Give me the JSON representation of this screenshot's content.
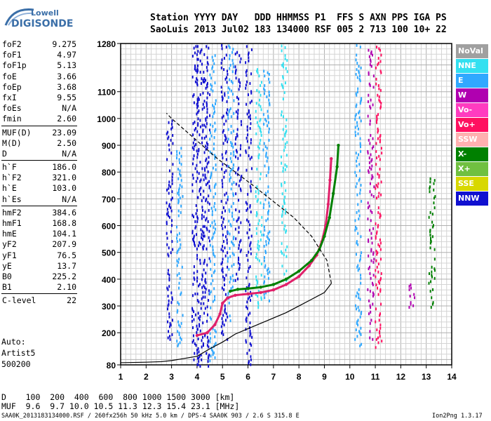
{
  "logo": {
    "line1": "Lowell",
    "line2": "DIGISONDE"
  },
  "header": {
    "line1": "Station YYYY DAY   DDD HHMMSS P1  FFS S AXN PPS IGA PS",
    "line2": "SaoLuis 2013 Jul02 183 134000 RSF 005 2 713 100 10+ 22"
  },
  "params": [
    {
      "name": "foF2",
      "value": "9.275"
    },
    {
      "name": "foF1",
      "value": "4.97"
    },
    {
      "name": "foF1p",
      "value": "5.13"
    },
    {
      "name": "foE",
      "value": "3.66"
    },
    {
      "name": "foEp",
      "value": "3.68"
    },
    {
      "name": "fxI",
      "value": "9.55"
    },
    {
      "name": "foEs",
      "value": "N/A"
    },
    {
      "name": "fmin",
      "value": "2.60"
    },
    {
      "name": "MUF(D)",
      "value": "23.09"
    },
    {
      "name": "M(D)",
      "value": "2.50"
    },
    {
      "name": "D",
      "value": "N/A"
    },
    {
      "name": "h`F",
      "value": "186.0"
    },
    {
      "name": "h`F2",
      "value": "321.0"
    },
    {
      "name": "h`E",
      "value": "103.0"
    },
    {
      "name": "h`Es",
      "value": "N/A"
    },
    {
      "name": "hmF2",
      "value": "384.6"
    },
    {
      "name": "hmF1",
      "value": "168.8"
    },
    {
      "name": "hmE",
      "value": "104.1"
    },
    {
      "name": "yF2",
      "value": "207.9"
    },
    {
      "name": "yF1",
      "value": "76.5"
    },
    {
      "name": "yE",
      "value": "13.7"
    },
    {
      "name": "B0",
      "value": "225.2"
    },
    {
      "name": "B1",
      "value": "2.10"
    },
    {
      "name": "C-level",
      "value": "22"
    }
  ],
  "auto": {
    "line1": "Auto:",
    "line2": "Artist5",
    "line3": "500200"
  },
  "bottom": {
    "d_row": "D    100  200  400  600  800 1000 1500 3000 [km]",
    "muf_row": "MUF  9.6  9.7 10.0 10.5 11.3 12.3 15.4 23.1 [MHz]",
    "footer": "SAA0K_2013183134000.RSF / 260fx256h 50 kHz 5.0 km / DPS-4 SAA0K 903 / 2.6 S 315.8 E",
    "version": "Ion2Png 1.3.17"
  },
  "legend": [
    {
      "label": "NoVal",
      "color": "#a0a0a0"
    },
    {
      "label": "NNE",
      "color": "#33e0f0"
    },
    {
      "label": "E",
      "color": "#30a8ff"
    },
    {
      "label": "W",
      "color": "#b000b0"
    },
    {
      "label": "Vo-",
      "color": "#ff3cc0"
    },
    {
      "label": "Vo+",
      "color": "#ff1060"
    },
    {
      "label": "SSW",
      "color": "#ffb0b0"
    },
    {
      "label": "X-",
      "color": "#008000"
    },
    {
      "label": "X+",
      "color": "#70c040"
    },
    {
      "label": "SSE",
      "color": "#d8d800"
    },
    {
      "label": "NNW",
      "color": "#1010d0"
    }
  ],
  "chart_data": {
    "type": "scatter",
    "xlabel": "",
    "ylabel": "",
    "xlim": [
      1,
      14
    ],
    "ylim": [
      80,
      1280
    ],
    "x_ticks": [
      1,
      2,
      3,
      4,
      5,
      6,
      7,
      8,
      9,
      10,
      11,
      12,
      13,
      14
    ],
    "y_ticks": [
      80,
      200,
      300,
      400,
      500,
      600,
      700,
      800,
      900,
      1000,
      1100,
      1280
    ],
    "grid": true,
    "series": [
      {
        "name": "O-trace",
        "color": "#e0206a",
        "x": [
          4.0,
          4.4,
          4.7,
          4.9,
          5.0,
          5.2,
          5.5,
          6.0,
          6.5,
          7.0,
          7.5,
          8.0,
          8.4,
          8.7,
          8.9,
          9.05,
          9.15,
          9.22,
          9.27
        ],
        "y": [
          190,
          200,
          230,
          270,
          310,
          330,
          340,
          345,
          350,
          360,
          380,
          410,
          450,
          490,
          540,
          600,
          680,
          770,
          850
        ]
      },
      {
        "name": "X-trace",
        "color": "#008000",
        "x": [
          5.3,
          5.6,
          6.0,
          6.5,
          7.0,
          7.5,
          8.0,
          8.5,
          8.8,
          9.0,
          9.2,
          9.35,
          9.5,
          9.55
        ],
        "y": [
          355,
          362,
          365,
          370,
          380,
          400,
          430,
          470,
          510,
          560,
          630,
          720,
          820,
          900
        ]
      },
      {
        "name": "profile",
        "color": "#000000",
        "x": [
          1.0,
          2.0,
          2.6,
          3.0,
          3.5,
          4.0,
          4.5,
          5.0,
          5.5,
          6.0,
          6.5,
          7.0,
          7.5,
          8.0,
          8.5,
          9.0,
          9.275
        ],
        "y": [
          88,
          90,
          92,
          96,
          104,
          112,
          140,
          165,
          195,
          215,
          235,
          255,
          275,
          300,
          325,
          350,
          384.6
        ]
      },
      {
        "name": "profile-topside",
        "color": "#000000",
        "x": [
          9.275,
          9.1,
          8.5,
          7.8,
          7.0,
          6.2,
          5.5,
          4.8,
          4.2,
          3.6,
          3.0,
          2.8
        ],
        "y": [
          384.6,
          470,
          560,
          630,
          690,
          750,
          800,
          850,
          900,
          950,
          1000,
          1020
        ]
      }
    ]
  }
}
